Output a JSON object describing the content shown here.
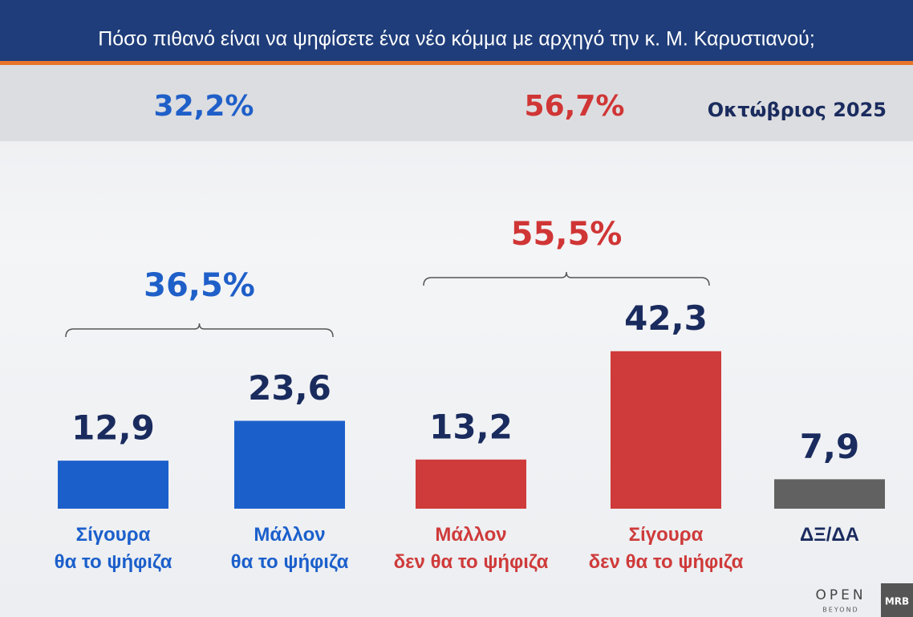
{
  "chart_data": {
    "type": "bar",
    "title": "Πόσο πιθανό είναι να ψηφίσετε ένα νέο κόμμα με αρχηγό την κ. Μ. Καρυστιανού;",
    "date": "Οκτώβριος 2025",
    "totals": [
      {
        "text": "32,2%",
        "color": "#1f5fc8"
      },
      {
        "text": "56,7%",
        "color": "#d03535"
      }
    ],
    "brackets": [
      {
        "text": "36,5%",
        "color": "#1f5fc8"
      },
      {
        "text": "55,5%",
        "color": "#d03535"
      }
    ],
    "categories": [
      "Σίγουρα\nθα το ψήφιζα",
      "Μάλλον\nθα το ψήφιζα",
      "Μάλλον\nδεν θα το ψήφιζα",
      "Σίγουρα\nδεν θα το ψήφιζα",
      "ΔΞ/ΔΑ"
    ],
    "values": [
      12.9,
      23.6,
      13.2,
      42.3,
      7.9
    ],
    "value_labels": [
      "12,9",
      "23,6",
      "13,2",
      "42,3",
      "7,9"
    ],
    "colors": [
      "#1b5fcb",
      "#1b5fcb",
      "#cf3a3a",
      "#cf3a3a",
      "#616161"
    ],
    "label_colors": [
      "#1b5fcb",
      "#1b5fcb",
      "#cf3a3a",
      "#cf3a3a",
      "#1a2b5e"
    ],
    "ylim": [
      0,
      50
    ],
    "logos": {
      "open": "OPEN",
      "beyond": "BEYOND",
      "mrb": "MRB"
    }
  }
}
